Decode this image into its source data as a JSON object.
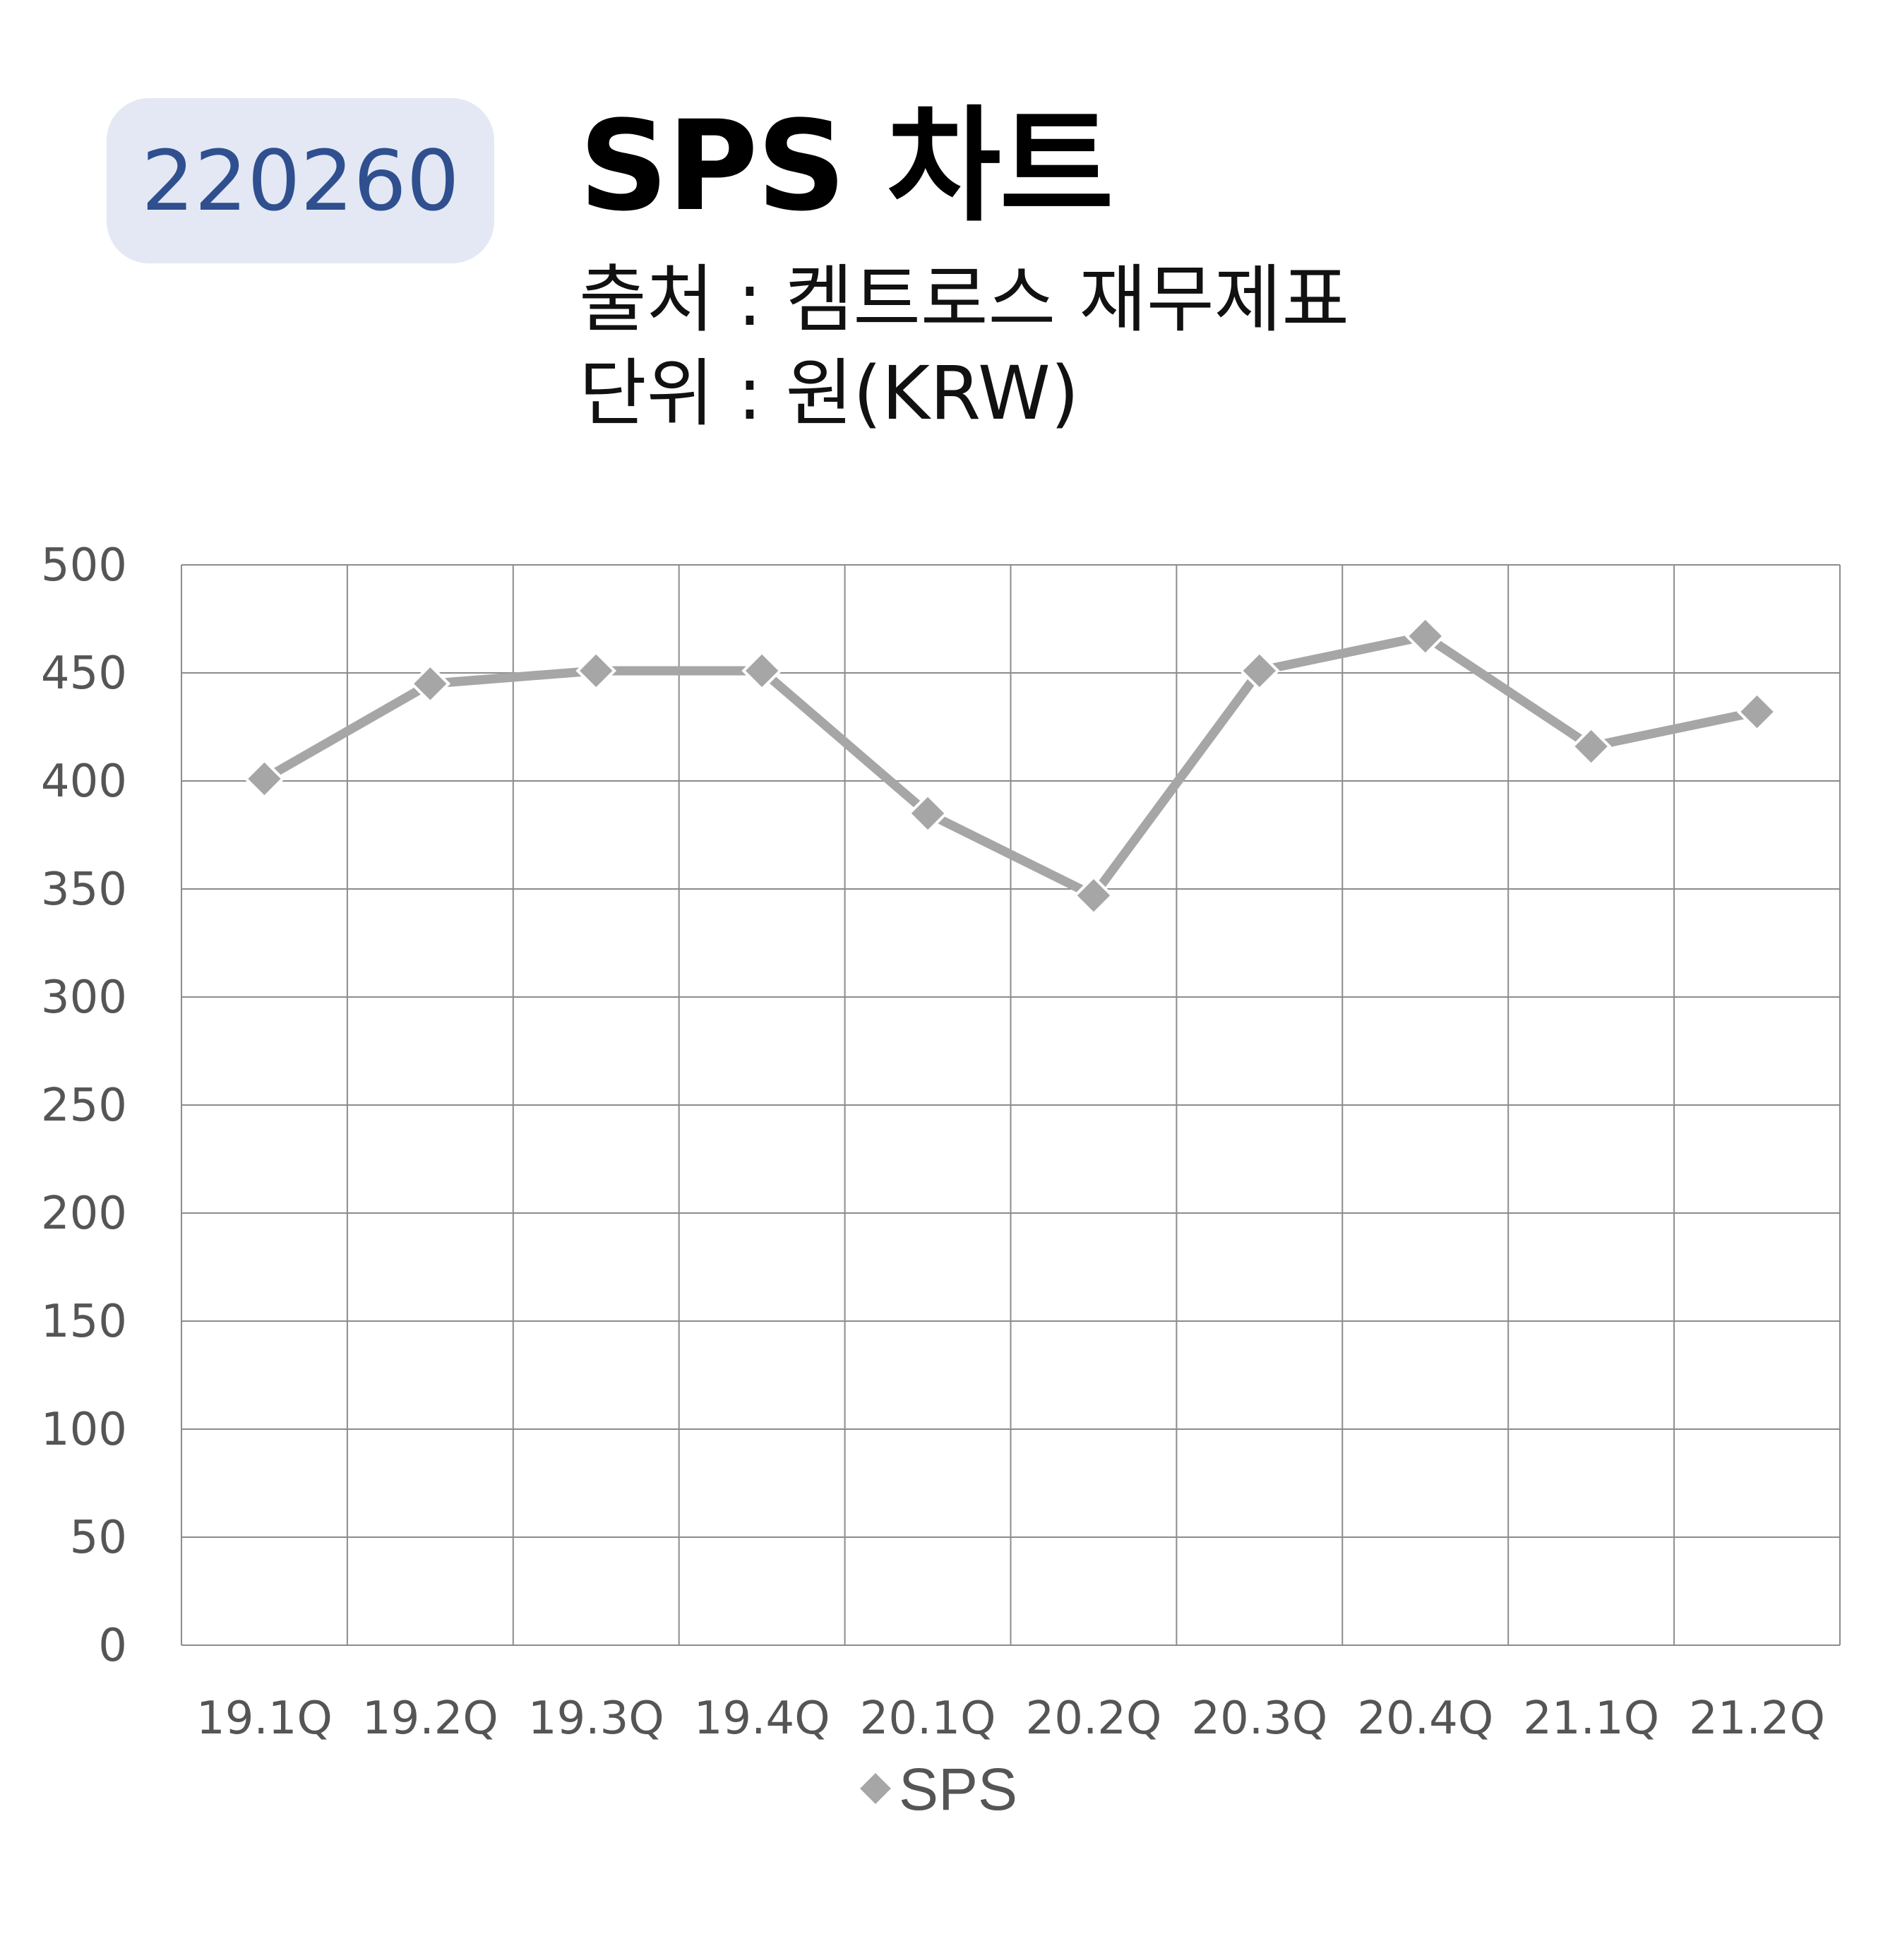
{
  "header": {
    "code": "220260",
    "title": "SPS 차트",
    "source": "출처 : 켐트로스 재무제표",
    "unit": "단위 : 원(KRW)"
  },
  "chart_data": {
    "type": "line",
    "categories": [
      "19.1Q",
      "19.2Q",
      "19.3Q",
      "19.4Q",
      "20.1Q",
      "20.2Q",
      "20.3Q",
      "20.4Q",
      "21.1Q",
      "21.2Q"
    ],
    "series": [
      {
        "name": "SPS",
        "values": [
          401,
          445,
          451,
          451,
          385,
          347,
          451,
          467,
          416,
          432
        ],
        "color": "#a6a6a6"
      }
    ],
    "ylim": [
      0,
      500
    ],
    "yticks": [
      0,
      50,
      100,
      150,
      200,
      250,
      300,
      350,
      400,
      450,
      500
    ],
    "grid": true,
    "legend_position": "bottom",
    "gridline_color": "#8c8c8c"
  }
}
